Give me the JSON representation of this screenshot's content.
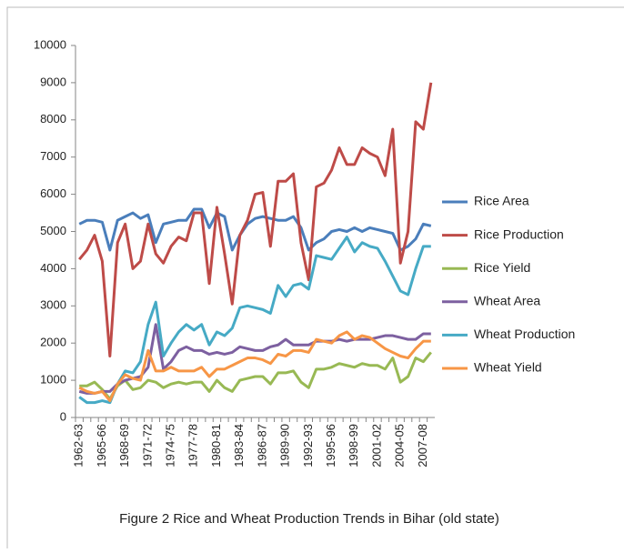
{
  "chart_data": {
    "type": "line",
    "title": "Figure 2  Rice and Wheat Production Trends in Bihar (old state)",
    "categories": [
      "1962-63",
      null,
      null,
      "1965-66",
      null,
      null,
      "1968-69",
      null,
      null,
      "1971-72",
      null,
      null,
      "1974-75",
      null,
      null,
      "1977-78",
      null,
      null,
      "1980-81",
      null,
      null,
      "1983-84",
      null,
      null,
      "1986-87",
      null,
      null,
      "1989-90",
      null,
      null,
      "1992-93",
      null,
      null,
      "1995-96",
      null,
      null,
      "1998-99",
      null,
      null,
      "2001-02",
      null,
      null,
      "2004-05",
      null,
      null,
      "2007-08",
      null
    ],
    "series": [
      {
        "name": "Rice Area",
        "color": "#4a7ebb",
        "values": [
          5200,
          5300,
          5300,
          5250,
          4500,
          5300,
          5400,
          5500,
          5350,
          5450,
          4700,
          5200,
          5250,
          5300,
          5300,
          5600,
          5600,
          5100,
          5500,
          5400,
          4500,
          4900,
          5200,
          5350,
          5400,
          5350,
          5300,
          5300,
          5400,
          5100,
          4500,
          4700,
          4800,
          5000,
          5050,
          5000,
          5100,
          5000,
          5100,
          5050,
          5000,
          4950,
          4500,
          4600,
          4800,
          5200,
          5150
        ]
      },
      {
        "name": "Rice Production",
        "color": "#be4b48",
        "values": [
          4250,
          4500,
          4900,
          4200,
          1650,
          4700,
          5200,
          4000,
          4200,
          5200,
          4400,
          4150,
          4600,
          4850,
          4750,
          5500,
          5500,
          3600,
          5650,
          4400,
          3050,
          4900,
          5300,
          6000,
          6050,
          4600,
          6350,
          6350,
          6550,
          4700,
          3700,
          6200,
          6300,
          6650,
          7250,
          6800,
          6800,
          7250,
          7100,
          7000,
          6500,
          7750,
          4150,
          5000,
          7950,
          7750,
          9000
        ]
      },
      {
        "name": "Rice Yield",
        "color": "#98b954",
        "values": [
          850,
          850,
          950,
          750,
          500,
          850,
          1000,
          750,
          800,
          1000,
          950,
          800,
          900,
          950,
          900,
          950,
          950,
          700,
          1000,
          800,
          700,
          1000,
          1050,
          1100,
          1100,
          900,
          1200,
          1200,
          1250,
          950,
          800,
          1300,
          1300,
          1350,
          1450,
          1400,
          1350,
          1450,
          1400,
          1400,
          1300,
          1600,
          950,
          1100,
          1600,
          1500,
          1750
        ]
      },
      {
        "name": "Wheat Area",
        "color": "#7d60a0",
        "values": [
          700,
          650,
          650,
          700,
          700,
          900,
          1000,
          1050,
          1100,
          1350,
          2500,
          1300,
          1500,
          1800,
          1900,
          1800,
          1800,
          1700,
          1750,
          1700,
          1750,
          1900,
          1850,
          1800,
          1800,
          1900,
          1950,
          2100,
          1950,
          1950,
          1950,
          2050,
          2050,
          2050,
          2100,
          2050,
          2100,
          2100,
          2100,
          2150,
          2200,
          2200,
          2150,
          2100,
          2100,
          2250,
          2250
        ]
      },
      {
        "name": "Wheat Production",
        "color": "#46aac5",
        "values": [
          550,
          400,
          400,
          450,
          400,
          900,
          1250,
          1200,
          1500,
          2500,
          3100,
          1650,
          2000,
          2300,
          2500,
          2350,
          2500,
          1950,
          2300,
          2200,
          2400,
          2950,
          3000,
          2950,
          2900,
          2800,
          3550,
          3250,
          3550,
          3600,
          3450,
          4350,
          4300,
          4250,
          4550,
          4850,
          4450,
          4700,
          4600,
          4550,
          4200,
          3800,
          3400,
          3300,
          4000,
          4600,
          4600
        ]
      },
      {
        "name": "Wheat Yield",
        "color": "#f79646",
        "values": [
          800,
          700,
          650,
          700,
          450,
          900,
          1150,
          1050,
          1000,
          1800,
          1250,
          1250,
          1350,
          1250,
          1250,
          1250,
          1350,
          1100,
          1300,
          1300,
          1400,
          1500,
          1600,
          1600,
          1550,
          1450,
          1700,
          1650,
          1800,
          1800,
          1750,
          2100,
          2050,
          2000,
          2200,
          2300,
          2100,
          2200,
          2150,
          2000,
          1850,
          1750,
          1650,
          1600,
          1850,
          2050,
          2050
        ]
      }
    ],
    "ylim": [
      0,
      10000
    ],
    "yticks": [
      0,
      1000,
      2000,
      3000,
      4000,
      5000,
      6000,
      7000,
      8000,
      9000,
      10000
    ],
    "grid": false,
    "legend": "right"
  }
}
